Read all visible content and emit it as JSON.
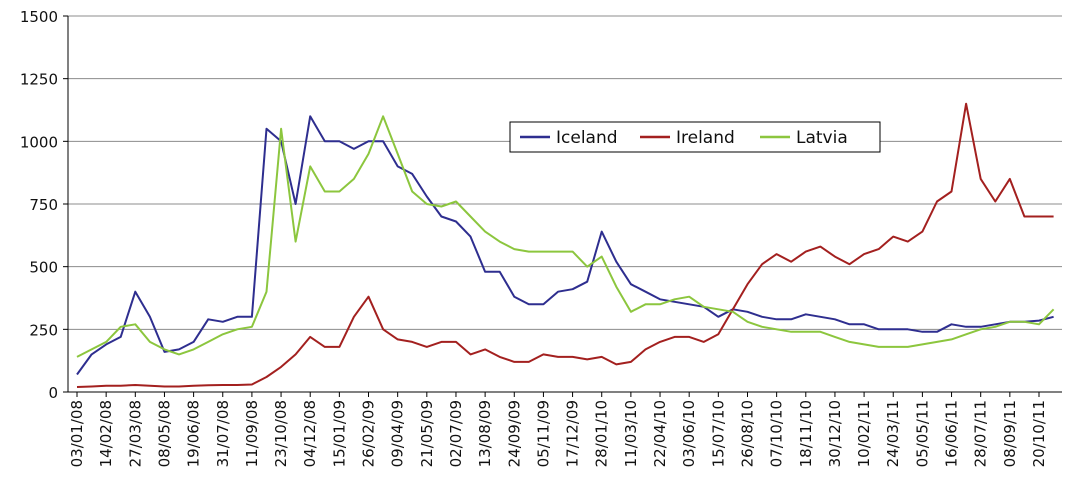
{
  "chart_data": {
    "type": "line",
    "categories": [
      "03/01/08",
      null,
      "14/02/08",
      null,
      "27/03/08",
      null,
      "08/05/08",
      null,
      "19/06/08",
      null,
      "31/07/08",
      null,
      "11/09/08",
      null,
      "23/10/08",
      null,
      "04/12/08",
      null,
      "15/01/09",
      null,
      "26/02/09",
      null,
      "09/04/09",
      null,
      "21/05/09",
      null,
      "02/07/09",
      null,
      "13/08/09",
      null,
      "24/09/09",
      null,
      "05/11/09",
      null,
      "17/12/09",
      null,
      "28/01/10",
      null,
      "11/03/10",
      null,
      "22/04/10",
      null,
      "03/06/10",
      null,
      "15/07/10",
      null,
      "26/08/10",
      null,
      "07/10/10",
      null,
      "18/11/10",
      null,
      "30/12/10",
      null,
      "10/02/11",
      null,
      "24/03/11",
      null,
      "05/05/11",
      null,
      "16/06/11",
      null,
      "28/07/11",
      null,
      "08/09/11",
      null,
      "20/10/11",
      null
    ],
    "series": [
      {
        "name": "Iceland",
        "color": "#2e2e8f",
        "values": [
          70,
          150,
          190,
          220,
          400,
          300,
          160,
          170,
          200,
          290,
          280,
          300,
          300,
          1050,
          1000,
          750,
          1100,
          1000,
          1000,
          970,
          1000,
          1000,
          900,
          870,
          780,
          700,
          680,
          620,
          480,
          480,
          380,
          350,
          350,
          400,
          410,
          440,
          640,
          520,
          430,
          400,
          370,
          360,
          350,
          340,
          300,
          330,
          320,
          300,
          290,
          290,
          310,
          300,
          290,
          270,
          270,
          250,
          250,
          250,
          240,
          240,
          270,
          260,
          260,
          270,
          280,
          280,
          285,
          300
        ]
      },
      {
        "name": "Ireland",
        "color": "#a3201f",
        "values": [
          20,
          22,
          25,
          25,
          28,
          25,
          22,
          22,
          25,
          27,
          28,
          28,
          30,
          60,
          100,
          150,
          220,
          180,
          180,
          300,
          380,
          250,
          210,
          200,
          180,
          200,
          200,
          150,
          170,
          140,
          120,
          120,
          150,
          140,
          140,
          130,
          140,
          110,
          120,
          170,
          200,
          220,
          220,
          200,
          230,
          330,
          430,
          510,
          550,
          520,
          560,
          580,
          540,
          510,
          550,
          570,
          620,
          600,
          640,
          760,
          800,
          1150,
          850,
          760,
          850,
          700,
          700,
          700
        ]
      },
      {
        "name": "Latvia",
        "color": "#8cc63e",
        "values": [
          140,
          170,
          200,
          260,
          270,
          200,
          170,
          150,
          170,
          200,
          230,
          250,
          260,
          400,
          1050,
          600,
          900,
          800,
          800,
          850,
          950,
          1100,
          950,
          800,
          750,
          740,
          760,
          700,
          640,
          600,
          570,
          560,
          560,
          560,
          560,
          500,
          540,
          420,
          320,
          350,
          350,
          370,
          380,
          340,
          330,
          320,
          280,
          260,
          250,
          240,
          240,
          240,
          220,
          200,
          190,
          180,
          180,
          180,
          190,
          200,
          210,
          230,
          250,
          260,
          280,
          280,
          270,
          330
        ]
      }
    ],
    "ylim": [
      0,
      1500
    ],
    "yticks": [
      0,
      250,
      500,
      750,
      1000,
      1250,
      1500
    ],
    "grid": true,
    "legend_position": "center"
  }
}
